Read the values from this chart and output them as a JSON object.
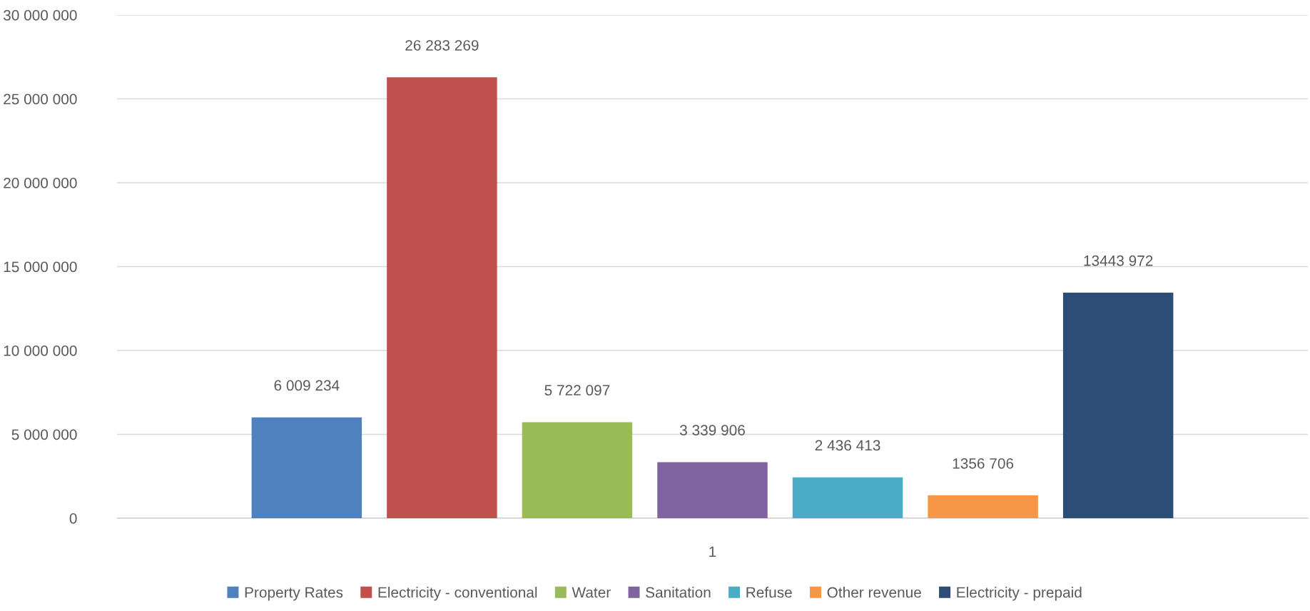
{
  "chart_data": {
    "type": "bar",
    "categories": [
      "1"
    ],
    "series": [
      {
        "name": "Property Rates",
        "color": "#4f81bd",
        "values": [
          6009234
        ],
        "value_labels": [
          "6 009 234"
        ]
      },
      {
        "name": "Electricity - conventional",
        "color": "#c0504d",
        "values": [
          26283269
        ],
        "value_labels": [
          "26 283 269"
        ]
      },
      {
        "name": "Water",
        "color": "#9bbb59",
        "values": [
          5722097
        ],
        "value_labels": [
          "5 722 097"
        ]
      },
      {
        "name": "Sanitation",
        "color": "#8064a2",
        "values": [
          3339906
        ],
        "value_labels": [
          "3 339 906"
        ]
      },
      {
        "name": "Refuse",
        "color": "#4bacc6",
        "values": [
          2436413
        ],
        "value_labels": [
          "2 436 413"
        ]
      },
      {
        "name": "Other revenue",
        "color": "#f79646",
        "values": [
          1356706
        ],
        "value_labels": [
          "1356 706"
        ]
      },
      {
        "name": "Electricity - prepaid",
        "color": "#2c4d75",
        "values": [
          13443972
        ],
        "value_labels": [
          "13443 972"
        ]
      }
    ],
    "ylim": [
      0,
      30000000
    ],
    "yticks": [
      {
        "value": 0,
        "label": "0"
      },
      {
        "value": 5000000,
        "label": "5 000 000"
      },
      {
        "value": 10000000,
        "label": "10 000 000"
      },
      {
        "value": 15000000,
        "label": "15 000 000"
      },
      {
        "value": 20000000,
        "label": "20 000 000"
      },
      {
        "value": 25000000,
        "label": "25 000 000"
      },
      {
        "value": 30000000,
        "label": "30 000 000"
      }
    ],
    "grid": "y",
    "legend": "bottom"
  }
}
